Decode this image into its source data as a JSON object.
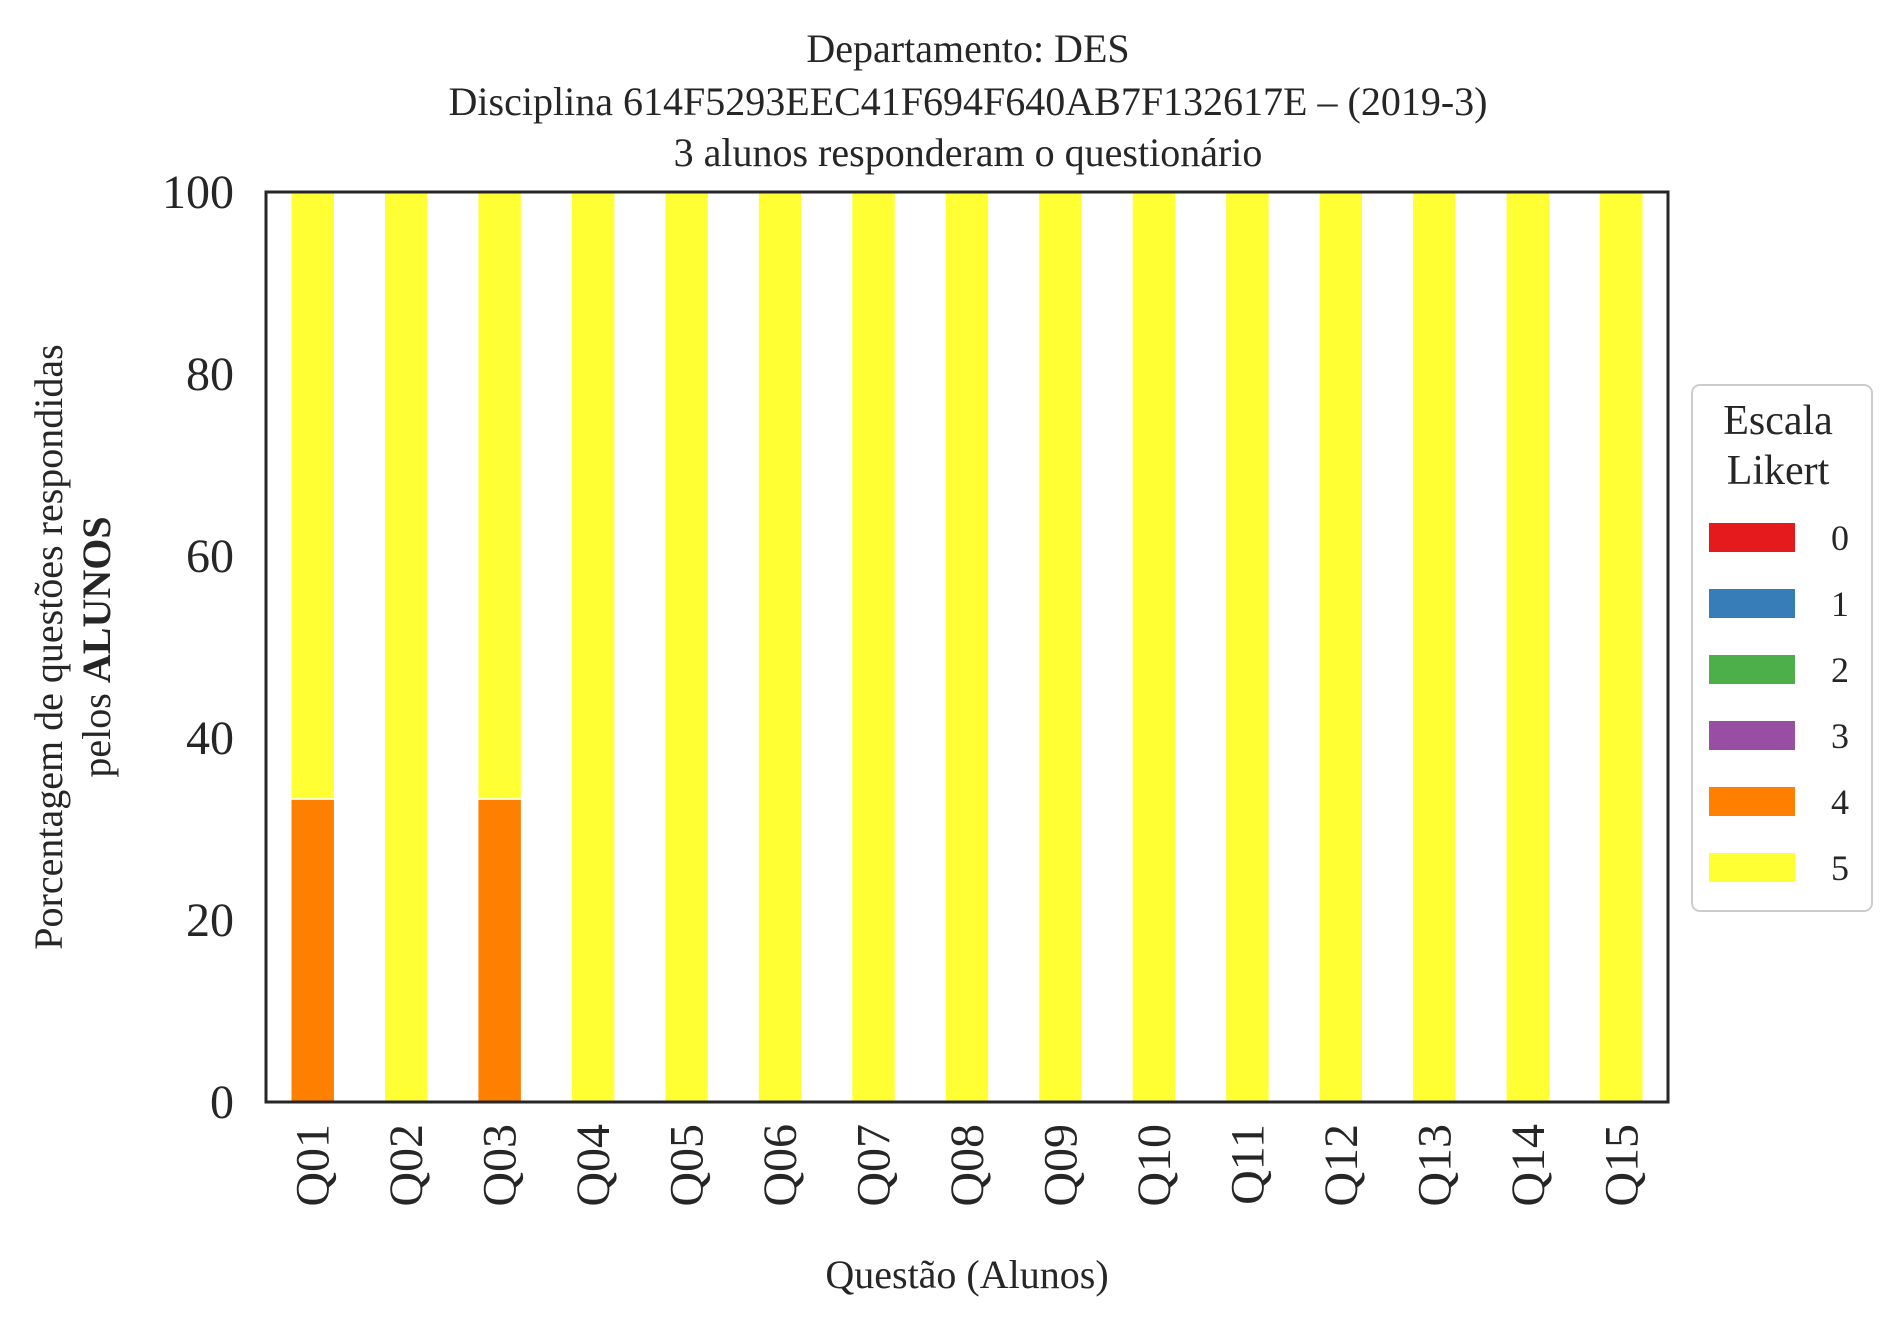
{
  "chart_data": {
    "type": "bar",
    "stacked": true,
    "title_lines": [
      "Departamento: DES",
      "Disciplina 614F5293EEC41F694F640AB7F132617E – (2019-3)",
      "3 alunos responderam o questionário"
    ],
    "xlabel": "Questão (Alunos)",
    "ylabel_line1": "Porcentagem de questões respondidas",
    "ylabel_line2_prefix": "pelos ",
    "ylabel_line2_bold": "ALUNOS",
    "ylim": [
      0,
      100
    ],
    "yticks": [
      0,
      20,
      40,
      60,
      80,
      100
    ],
    "categories": [
      "Q01",
      "Q02",
      "Q03",
      "Q04",
      "Q05",
      "Q06",
      "Q07",
      "Q08",
      "Q09",
      "Q10",
      "Q11",
      "Q12",
      "Q13",
      "Q14",
      "Q15"
    ],
    "legend_title_lines": [
      "Escala",
      "Likert"
    ],
    "legend_position": "center-right outside",
    "grid": false,
    "series": [
      {
        "name": "0",
        "color": "#e41a1c",
        "values": [
          0,
          0,
          0,
          0,
          0,
          0,
          0,
          0,
          0,
          0,
          0,
          0,
          0,
          0,
          0
        ]
      },
      {
        "name": "1",
        "color": "#377eb8",
        "values": [
          0,
          0,
          0,
          0,
          0,
          0,
          0,
          0,
          0,
          0,
          0,
          0,
          0,
          0,
          0
        ]
      },
      {
        "name": "2",
        "color": "#4daf4a",
        "values": [
          0,
          0,
          0,
          0,
          0,
          0,
          0,
          0,
          0,
          0,
          0,
          0,
          0,
          0,
          0
        ]
      },
      {
        "name": "3",
        "color": "#984ea3",
        "values": [
          0,
          0,
          0,
          0,
          0,
          0,
          0,
          0,
          0,
          0,
          0,
          0,
          0,
          0,
          0
        ]
      },
      {
        "name": "4",
        "color": "#ff7f00",
        "values": [
          33.3,
          0,
          33.3,
          0,
          0,
          0,
          0,
          0,
          0,
          0,
          0,
          0,
          0,
          0,
          0
        ]
      },
      {
        "name": "5",
        "color": "#ffff33",
        "values": [
          66.7,
          100,
          66.7,
          100,
          100,
          100,
          100,
          100,
          100,
          100,
          100,
          100,
          100,
          100,
          100
        ]
      }
    ]
  }
}
